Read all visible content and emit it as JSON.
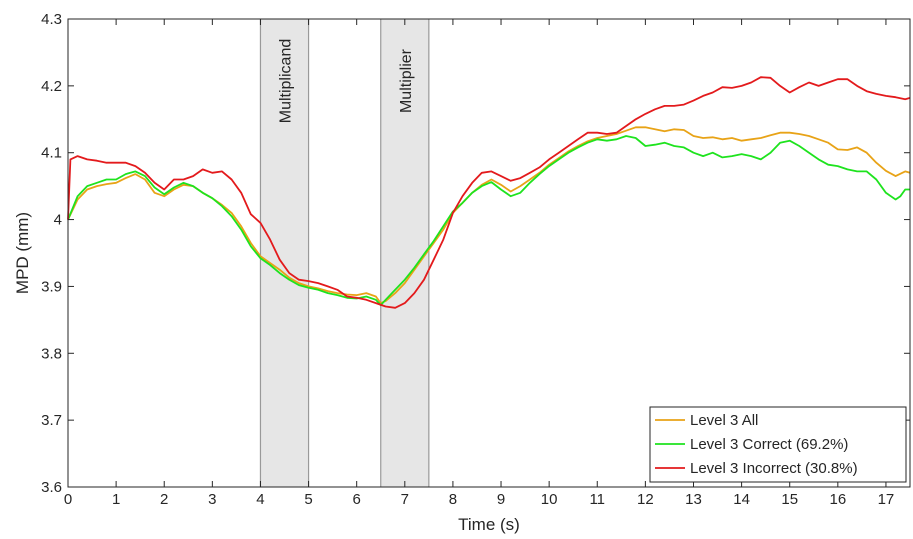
{
  "chart_data": {
    "type": "line",
    "xlabel": "Time (s)",
    "ylabel": "MPD (mm)",
    "xlim": [
      0,
      17.5
    ],
    "ylim": [
      3.6,
      4.3
    ],
    "xticks": [
      0,
      1,
      2,
      3,
      4,
      5,
      6,
      7,
      8,
      9,
      10,
      11,
      12,
      13,
      14,
      15,
      16,
      17
    ],
    "yticks": [
      3.6,
      3.7,
      3.8,
      3.9,
      4.0,
      4.1,
      4.2,
      4.3
    ],
    "ytick_labels": [
      "3.6",
      "3.7",
      "3.8",
      "3.9",
      "4",
      "4.1",
      "4.2",
      "4.3"
    ],
    "grid": false,
    "legend_position": "bottom-right",
    "shaded_regions": [
      {
        "label": "Multiplicand",
        "x_start": 4,
        "x_end": 5,
        "color": "#e6e6e6",
        "edge_color": "#999999"
      },
      {
        "label": "Multiplier",
        "x_start": 6.5,
        "x_end": 7.5,
        "color": "#e6e6e6",
        "edge_color": "#999999"
      }
    ],
    "series": [
      {
        "name": "Level 3 All",
        "color": "#e8a317",
        "points": [
          [
            0,
            4.0
          ],
          [
            0.2,
            4.03
          ],
          [
            0.4,
            4.045
          ],
          [
            0.6,
            4.05
          ],
          [
            0.8,
            4.053
          ],
          [
            1.0,
            4.055
          ],
          [
            1.2,
            4.062
          ],
          [
            1.4,
            4.068
          ],
          [
            1.6,
            4.06
          ],
          [
            1.8,
            4.04
          ],
          [
            2.0,
            4.035
          ],
          [
            2.2,
            4.045
          ],
          [
            2.4,
            4.052
          ],
          [
            2.6,
            4.05
          ],
          [
            2.8,
            4.04
          ],
          [
            3.0,
            4.032
          ],
          [
            3.2,
            4.022
          ],
          [
            3.4,
            4.01
          ],
          [
            3.6,
            3.99
          ],
          [
            3.8,
            3.965
          ],
          [
            4.0,
            3.945
          ],
          [
            4.2,
            3.935
          ],
          [
            4.4,
            3.925
          ],
          [
            4.6,
            3.913
          ],
          [
            4.8,
            3.905
          ],
          [
            5.0,
            3.9
          ],
          [
            5.2,
            3.897
          ],
          [
            5.4,
            3.893
          ],
          [
            5.6,
            3.89
          ],
          [
            5.8,
            3.888
          ],
          [
            6.0,
            3.887
          ],
          [
            6.2,
            3.89
          ],
          [
            6.4,
            3.885
          ],
          [
            6.5,
            3.875
          ],
          [
            6.6,
            3.878
          ],
          [
            6.8,
            3.89
          ],
          [
            7.0,
            3.905
          ],
          [
            7.2,
            3.925
          ],
          [
            7.4,
            3.945
          ],
          [
            7.6,
            3.965
          ],
          [
            7.8,
            3.985
          ],
          [
            8.0,
            4.01
          ],
          [
            8.2,
            4.025
          ],
          [
            8.4,
            4.04
          ],
          [
            8.6,
            4.052
          ],
          [
            8.8,
            4.06
          ],
          [
            9.0,
            4.052
          ],
          [
            9.2,
            4.042
          ],
          [
            9.4,
            4.05
          ],
          [
            9.6,
            4.06
          ],
          [
            9.8,
            4.07
          ],
          [
            10.0,
            4.082
          ],
          [
            10.2,
            4.092
          ],
          [
            10.4,
            4.102
          ],
          [
            10.6,
            4.11
          ],
          [
            10.8,
            4.117
          ],
          [
            11.0,
            4.122
          ],
          [
            11.2,
            4.125
          ],
          [
            11.4,
            4.128
          ],
          [
            11.6,
            4.133
          ],
          [
            11.8,
            4.138
          ],
          [
            12.0,
            4.138
          ],
          [
            12.2,
            4.135
          ],
          [
            12.4,
            4.132
          ],
          [
            12.6,
            4.135
          ],
          [
            12.8,
            4.134
          ],
          [
            13.0,
            4.125
          ],
          [
            13.2,
            4.122
          ],
          [
            13.4,
            4.123
          ],
          [
            13.6,
            4.12
          ],
          [
            13.8,
            4.122
          ],
          [
            14.0,
            4.118
          ],
          [
            14.2,
            4.12
          ],
          [
            14.4,
            4.122
          ],
          [
            14.6,
            4.126
          ],
          [
            14.8,
            4.13
          ],
          [
            15.0,
            4.13
          ],
          [
            15.2,
            4.128
          ],
          [
            15.4,
            4.125
          ],
          [
            15.6,
            4.12
          ],
          [
            15.8,
            4.115
          ],
          [
            16.0,
            4.105
          ],
          [
            16.2,
            4.104
          ],
          [
            16.4,
            4.108
          ],
          [
            16.6,
            4.1
          ],
          [
            16.8,
            4.085
          ],
          [
            17.0,
            4.073
          ],
          [
            17.2,
            4.065
          ],
          [
            17.4,
            4.072
          ],
          [
            17.5,
            4.07
          ]
        ]
      },
      {
        "name": "Level 3 Correct (69.2%)",
        "color": "#1ee31e",
        "points": [
          [
            0,
            4.0
          ],
          [
            0.2,
            4.035
          ],
          [
            0.4,
            4.05
          ],
          [
            0.6,
            4.055
          ],
          [
            0.8,
            4.06
          ],
          [
            1.0,
            4.06
          ],
          [
            1.2,
            4.068
          ],
          [
            1.4,
            4.072
          ],
          [
            1.6,
            4.065
          ],
          [
            1.8,
            4.048
          ],
          [
            2.0,
            4.038
          ],
          [
            2.2,
            4.048
          ],
          [
            2.4,
            4.055
          ],
          [
            2.6,
            4.05
          ],
          [
            2.8,
            4.04
          ],
          [
            3.0,
            4.032
          ],
          [
            3.2,
            4.02
          ],
          [
            3.4,
            4.005
          ],
          [
            3.6,
            3.985
          ],
          [
            3.8,
            3.96
          ],
          [
            4.0,
            3.942
          ],
          [
            4.2,
            3.932
          ],
          [
            4.4,
            3.92
          ],
          [
            4.6,
            3.91
          ],
          [
            4.8,
            3.902
          ],
          [
            5.0,
            3.898
          ],
          [
            5.2,
            3.895
          ],
          [
            5.4,
            3.89
          ],
          [
            5.6,
            3.887
          ],
          [
            5.8,
            3.883
          ],
          [
            6.0,
            3.882
          ],
          [
            6.2,
            3.885
          ],
          [
            6.4,
            3.88
          ],
          [
            6.5,
            3.872
          ],
          [
            6.6,
            3.88
          ],
          [
            6.8,
            3.895
          ],
          [
            7.0,
            3.91
          ],
          [
            7.2,
            3.928
          ],
          [
            7.4,
            3.948
          ],
          [
            7.6,
            3.968
          ],
          [
            7.8,
            3.99
          ],
          [
            8.0,
            4.012
          ],
          [
            8.2,
            4.025
          ],
          [
            8.4,
            4.04
          ],
          [
            8.6,
            4.05
          ],
          [
            8.8,
            4.056
          ],
          [
            9.0,
            4.045
          ],
          [
            9.2,
            4.035
          ],
          [
            9.4,
            4.04
          ],
          [
            9.6,
            4.055
          ],
          [
            9.8,
            4.068
          ],
          [
            10.0,
            4.08
          ],
          [
            10.2,
            4.09
          ],
          [
            10.4,
            4.1
          ],
          [
            10.6,
            4.108
          ],
          [
            10.8,
            4.115
          ],
          [
            11.0,
            4.12
          ],
          [
            11.2,
            4.118
          ],
          [
            11.4,
            4.12
          ],
          [
            11.6,
            4.125
          ],
          [
            11.8,
            4.122
          ],
          [
            12.0,
            4.11
          ],
          [
            12.2,
            4.112
          ],
          [
            12.4,
            4.115
          ],
          [
            12.6,
            4.11
          ],
          [
            12.8,
            4.108
          ],
          [
            13.0,
            4.1
          ],
          [
            13.2,
            4.095
          ],
          [
            13.4,
            4.1
          ],
          [
            13.6,
            4.093
          ],
          [
            13.8,
            4.095
          ],
          [
            14.0,
            4.098
          ],
          [
            14.2,
            4.095
          ],
          [
            14.4,
            4.09
          ],
          [
            14.6,
            4.1
          ],
          [
            14.8,
            4.115
          ],
          [
            15.0,
            4.118
          ],
          [
            15.2,
            4.11
          ],
          [
            15.4,
            4.1
          ],
          [
            15.6,
            4.09
          ],
          [
            15.8,
            4.082
          ],
          [
            16.0,
            4.08
          ],
          [
            16.2,
            4.075
          ],
          [
            16.4,
            4.072
          ],
          [
            16.6,
            4.072
          ],
          [
            16.8,
            4.06
          ],
          [
            17.0,
            4.04
          ],
          [
            17.2,
            4.03
          ],
          [
            17.3,
            4.035
          ],
          [
            17.4,
            4.045
          ],
          [
            17.5,
            4.045
          ]
        ]
      },
      {
        "name": "Level 3 Incorrect (30.8%)",
        "color": "#e31a1c",
        "points": [
          [
            0,
            4.0
          ],
          [
            0.05,
            4.09
          ],
          [
            0.2,
            4.095
          ],
          [
            0.4,
            4.09
          ],
          [
            0.6,
            4.088
          ],
          [
            0.8,
            4.085
          ],
          [
            1.0,
            4.085
          ],
          [
            1.2,
            4.085
          ],
          [
            1.4,
            4.08
          ],
          [
            1.6,
            4.07
          ],
          [
            1.8,
            4.055
          ],
          [
            2.0,
            4.045
          ],
          [
            2.2,
            4.06
          ],
          [
            2.4,
            4.06
          ],
          [
            2.6,
            4.065
          ],
          [
            2.8,
            4.075
          ],
          [
            3.0,
            4.07
          ],
          [
            3.2,
            4.072
          ],
          [
            3.4,
            4.06
          ],
          [
            3.6,
            4.04
          ],
          [
            3.8,
            4.008
          ],
          [
            4.0,
            3.995
          ],
          [
            4.2,
            3.97
          ],
          [
            4.4,
            3.94
          ],
          [
            4.6,
            3.92
          ],
          [
            4.8,
            3.91
          ],
          [
            5.0,
            3.908
          ],
          [
            5.2,
            3.905
          ],
          [
            5.4,
            3.9
          ],
          [
            5.6,
            3.895
          ],
          [
            5.8,
            3.885
          ],
          [
            6.0,
            3.883
          ],
          [
            6.2,
            3.88
          ],
          [
            6.4,
            3.875
          ],
          [
            6.6,
            3.87
          ],
          [
            6.8,
            3.868
          ],
          [
            7.0,
            3.875
          ],
          [
            7.2,
            3.89
          ],
          [
            7.4,
            3.91
          ],
          [
            7.6,
            3.94
          ],
          [
            7.8,
            3.97
          ],
          [
            8.0,
            4.01
          ],
          [
            8.2,
            4.035
          ],
          [
            8.4,
            4.055
          ],
          [
            8.6,
            4.07
          ],
          [
            8.8,
            4.072
          ],
          [
            9.0,
            4.065
          ],
          [
            9.2,
            4.058
          ],
          [
            9.4,
            4.062
          ],
          [
            9.6,
            4.07
          ],
          [
            9.8,
            4.078
          ],
          [
            10.0,
            4.09
          ],
          [
            10.2,
            4.1
          ],
          [
            10.4,
            4.11
          ],
          [
            10.6,
            4.12
          ],
          [
            10.8,
            4.13
          ],
          [
            11.0,
            4.13
          ],
          [
            11.2,
            4.128
          ],
          [
            11.4,
            4.13
          ],
          [
            11.6,
            4.14
          ],
          [
            11.8,
            4.15
          ],
          [
            12.0,
            4.158
          ],
          [
            12.2,
            4.165
          ],
          [
            12.4,
            4.17
          ],
          [
            12.6,
            4.17
          ],
          [
            12.8,
            4.172
          ],
          [
            13.0,
            4.178
          ],
          [
            13.2,
            4.185
          ],
          [
            13.4,
            4.19
          ],
          [
            13.6,
            4.198
          ],
          [
            13.8,
            4.197
          ],
          [
            14.0,
            4.2
          ],
          [
            14.2,
            4.205
          ],
          [
            14.4,
            4.213
          ],
          [
            14.6,
            4.212
          ],
          [
            14.8,
            4.2
          ],
          [
            15.0,
            4.19
          ],
          [
            15.2,
            4.198
          ],
          [
            15.4,
            4.205
          ],
          [
            15.6,
            4.2
          ],
          [
            15.8,
            4.205
          ],
          [
            16.0,
            4.21
          ],
          [
            16.2,
            4.21
          ],
          [
            16.4,
            4.2
          ],
          [
            16.6,
            4.192
          ],
          [
            16.8,
            4.188
          ],
          [
            17.0,
            4.185
          ],
          [
            17.2,
            4.183
          ],
          [
            17.4,
            4.18
          ],
          [
            17.5,
            4.182
          ]
        ]
      }
    ]
  }
}
